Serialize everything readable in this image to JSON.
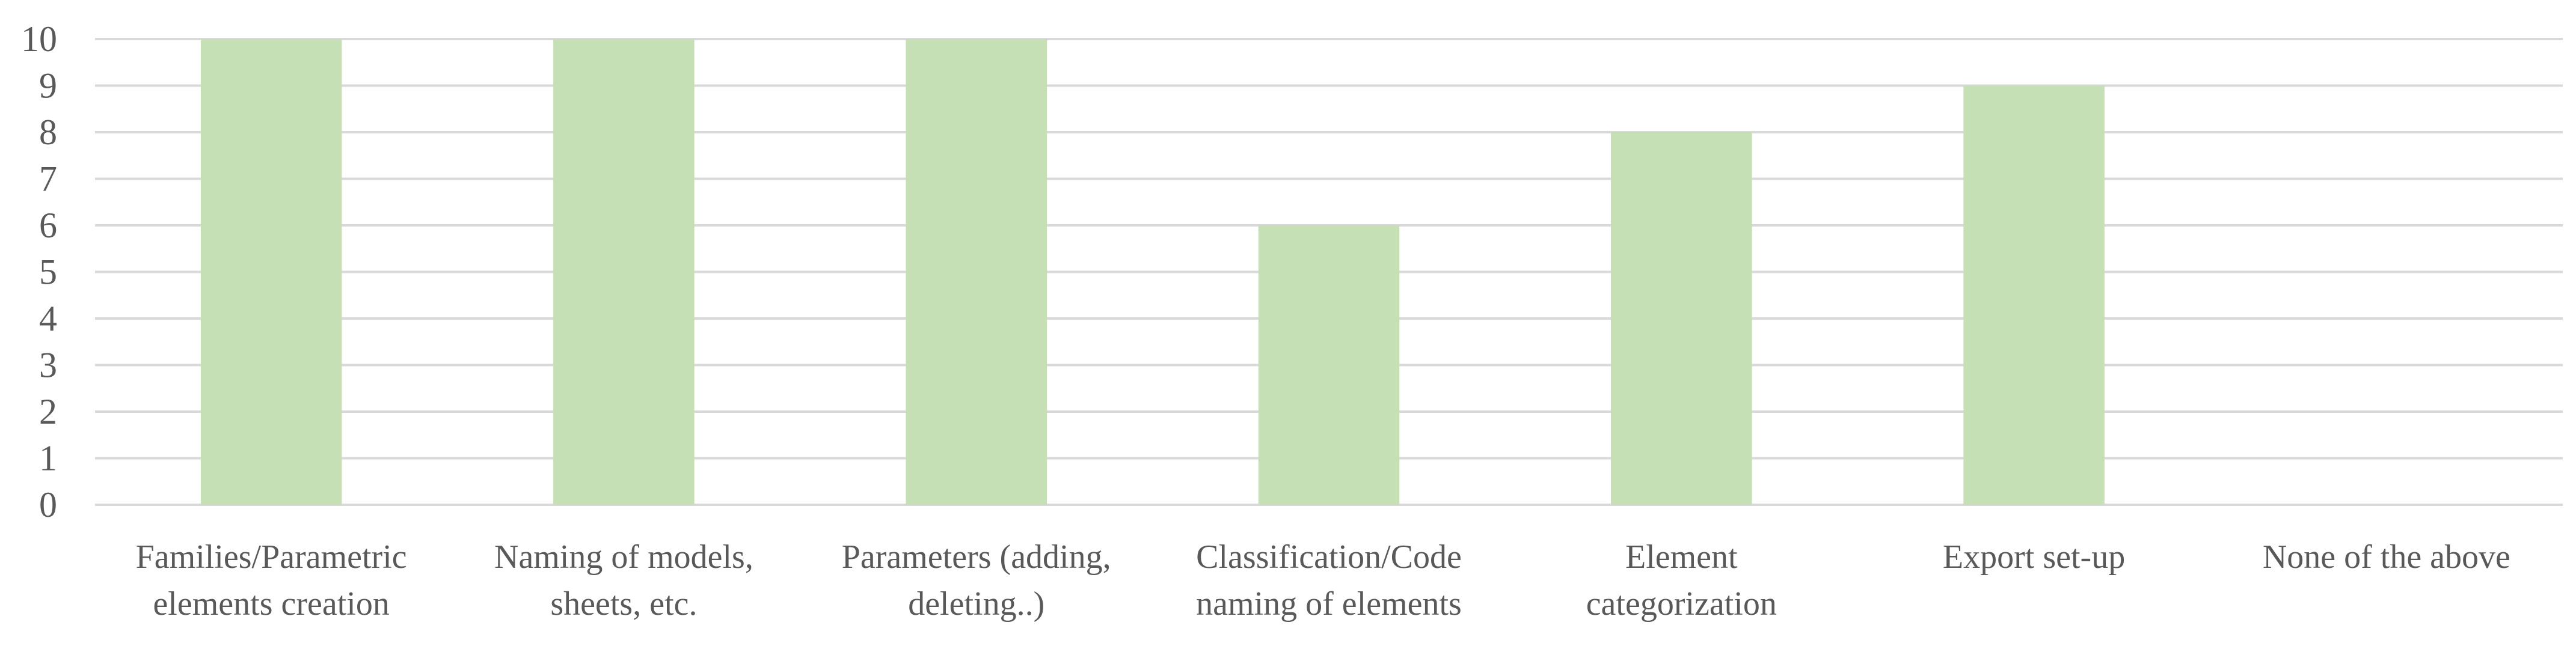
{
  "chart_data": {
    "type": "bar",
    "title": "",
    "xlabel": "",
    "ylabel": "",
    "ylim": [
      0,
      10
    ],
    "yticks": [
      0,
      1,
      2,
      3,
      4,
      5,
      6,
      7,
      8,
      9,
      10
    ],
    "grid": true,
    "legend": "none",
    "categories": [
      [
        "Families/Parametric",
        "elements creation"
      ],
      [
        "Naming of models,",
        "sheets, etc."
      ],
      [
        "Parameters (adding,",
        "deleting..)"
      ],
      [
        "Classification/Code",
        "naming of elements"
      ],
      [
        "Element",
        "categorization"
      ],
      [
        "Export set-up"
      ],
      [
        "None of the above"
      ]
    ],
    "values": [
      10,
      10,
      10,
      6,
      8,
      9,
      0
    ],
    "colors": {
      "bar": "#c5e0b4",
      "grid": "#d9d9d9",
      "text": "#595959"
    }
  }
}
